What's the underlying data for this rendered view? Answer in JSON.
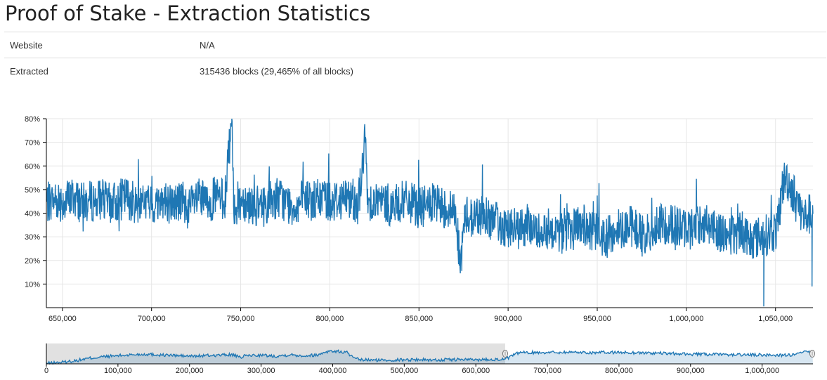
{
  "page": {
    "title": "Proof of Stake - Extraction Statistics"
  },
  "info": {
    "rows": [
      {
        "label": "Website",
        "value": "N/A"
      },
      {
        "label": "Extracted",
        "value": "315436 blocks (29,465% of all blocks)"
      }
    ]
  },
  "chart_data": [
    {
      "type": "line",
      "title": "",
      "xlabel": "",
      "ylabel": "",
      "color": "#1f77b4",
      "xlim": [
        641000,
        1071000
      ],
      "ylim": [
        0,
        80
      ],
      "x_ticks": [
        650000,
        700000,
        750000,
        800000,
        850000,
        900000,
        950000,
        1000000,
        1050000
      ],
      "x_tick_labels": [
        "650,000",
        "700,000",
        "750,000",
        "800,000",
        "850,000",
        "900,000",
        "950,000",
        "1,000,000",
        "1,050,000"
      ],
      "y_ticks": [
        10,
        20,
        30,
        40,
        50,
        60,
        70,
        80
      ],
      "y_tick_labels": [
        "10%",
        "20%",
        "30%",
        "40%",
        "50%",
        "60%",
        "70%",
        "80%"
      ],
      "grid": true,
      "series": [
        {
          "x": [
            641000,
            646000,
            651000,
            656000,
            661000,
            666000,
            671000,
            676000,
            681000,
            686000,
            691000,
            696000,
            701000,
            706000,
            711000,
            716000,
            721000,
            726000,
            731000,
            736000,
            741000,
            745000,
            746000,
            751000,
            756000,
            761000,
            766000,
            771000,
            776000,
            781000,
            786000,
            791000,
            796000,
            801000,
            806000,
            811000,
            816000,
            820000,
            821000,
            826000,
            831000,
            836000,
            841000,
            846000,
            851000,
            856000,
            861000,
            866000,
            871000,
            873000,
            876000,
            881000,
            886000,
            891000,
            896000,
            901000,
            906000,
            911000,
            916000,
            921000,
            926000,
            931000,
            936000,
            941000,
            946000,
            951000,
            956000,
            961000,
            966000,
            971000,
            976000,
            981000,
            986000,
            991000,
            996000,
            1001000,
            1006000,
            1011000,
            1016000,
            1021000,
            1026000,
            1031000,
            1036000,
            1041000,
            1046000,
            1051000,
            1054000,
            1056000,
            1061000,
            1066000,
            1070000
          ],
          "y": [
            44,
            46,
            45,
            47,
            44,
            45,
            46,
            44,
            45,
            47,
            44,
            45,
            43,
            46,
            44,
            45,
            42,
            46,
            44,
            47,
            45,
            80,
            43,
            46,
            44,
            42,
            45,
            47,
            44,
            43,
            46,
            45,
            47,
            45,
            46,
            47,
            44,
            72,
            46,
            45,
            44,
            43,
            45,
            44,
            42,
            44,
            43,
            42,
            40,
            17,
            39,
            38,
            40,
            37,
            35,
            34,
            33,
            35,
            32,
            34,
            33,
            31,
            33,
            36,
            32,
            31,
            30,
            33,
            35,
            34,
            30,
            33,
            35,
            36,
            34,
            33,
            35,
            36,
            34,
            31,
            30,
            33,
            29,
            30,
            31,
            33,
            52,
            55,
            47,
            38,
            40
          ]
        }
      ]
    },
    {
      "type": "area",
      "title": "",
      "xlabel": "",
      "ylabel": "",
      "color": "#1f77b4",
      "xlim": [
        0,
        1071000
      ],
      "ylim": [
        0,
        80
      ],
      "selected_range": [
        0,
        641000
      ],
      "x_ticks": [
        0,
        100000,
        200000,
        300000,
        400000,
        500000,
        600000,
        700000,
        800000,
        900000,
        1000000
      ],
      "x_tick_labels": [
        "0",
        "100,000",
        "200,000",
        "300,000",
        "400,000",
        "500,000",
        "600,000",
        "700,000",
        "800,000",
        "900,000",
        "1,000,000"
      ],
      "grid": false,
      "series": [
        {
          "x": [
            0,
            20000,
            40000,
            60000,
            80000,
            100000,
            120000,
            140000,
            160000,
            180000,
            200000,
            220000,
            240000,
            260000,
            270000,
            280000,
            300000,
            320000,
            340000,
            360000,
            380000,
            390000,
            400000,
            420000,
            430000,
            440000,
            460000,
            480000,
            500000,
            520000,
            540000,
            560000,
            580000,
            600000,
            620000,
            641000,
            660000,
            700000,
            740000,
            760000,
            800000,
            850000,
            900000,
            950000,
            1000000,
            1040000,
            1050000,
            1060000,
            1070000
          ],
          "y": [
            2,
            6,
            12,
            22,
            28,
            32,
            36,
            38,
            35,
            33,
            30,
            32,
            34,
            36,
            25,
            33,
            34,
            30,
            36,
            32,
            35,
            48,
            50,
            45,
            20,
            16,
            14,
            15,
            16,
            17,
            15,
            16,
            17,
            16,
            18,
            17,
            44,
            45,
            46,
            44,
            45,
            42,
            38,
            36,
            35,
            34,
            38,
            48,
            42
          ]
        }
      ]
    }
  ]
}
